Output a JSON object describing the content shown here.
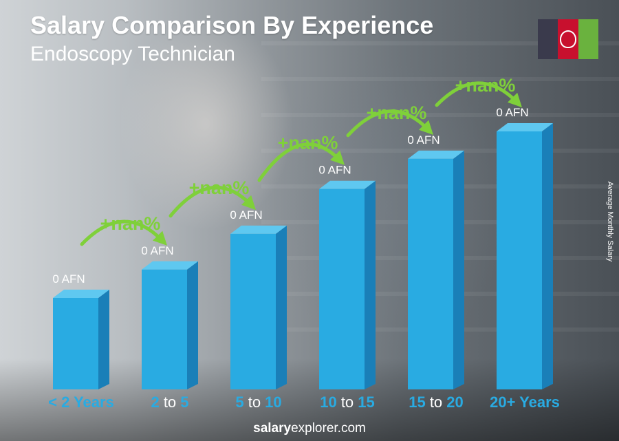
{
  "header": {
    "title": "Salary Comparison By Experience",
    "subtitle": "Endoscopy Technician",
    "side_label": "Average Monthly Salary"
  },
  "flag": {
    "colors": [
      "#3a3a4c",
      "#c8102e",
      "#6ab23e"
    ],
    "icon": "afghanistan-flag-icon"
  },
  "footer": {
    "site_bold": "salary",
    "site_rest": "explorer.com"
  },
  "colors": {
    "bar_front": "#29abe2",
    "bar_side": "#1a7fb8",
    "bar_top": "#5fc8f0",
    "arrow": "#7fd03a",
    "label_accent": "#29abe2"
  },
  "chart_data": {
    "type": "bar",
    "categories": [
      "< 2 Years",
      "2 to 5",
      "5 to 10",
      "10 to 15",
      "15 to 20",
      "20+ Years"
    ],
    "category_parts": [
      {
        "a": "< 2 Years",
        "sep": "",
        "b": ""
      },
      {
        "a": "2",
        "sep": " to ",
        "b": "5"
      },
      {
        "a": "5",
        "sep": " to ",
        "b": "10"
      },
      {
        "a": "10",
        "sep": " to ",
        "b": "15"
      },
      {
        "a": "15",
        "sep": " to ",
        "b": "20"
      },
      {
        "a": "20+ Years",
        "sep": "",
        "b": ""
      }
    ],
    "value_labels": [
      "0 AFN",
      "0 AFN",
      "0 AFN",
      "0 AFN",
      "0 AFN",
      "0 AFN"
    ],
    "values_relative": [
      1.0,
      1.31,
      1.7,
      2.19,
      2.52,
      2.82
    ],
    "change_labels": [
      "+nan%",
      "+nan%",
      "+nan%",
      "+nan%",
      "+nan%"
    ],
    "ylabel": "Average Monthly Salary"
  }
}
